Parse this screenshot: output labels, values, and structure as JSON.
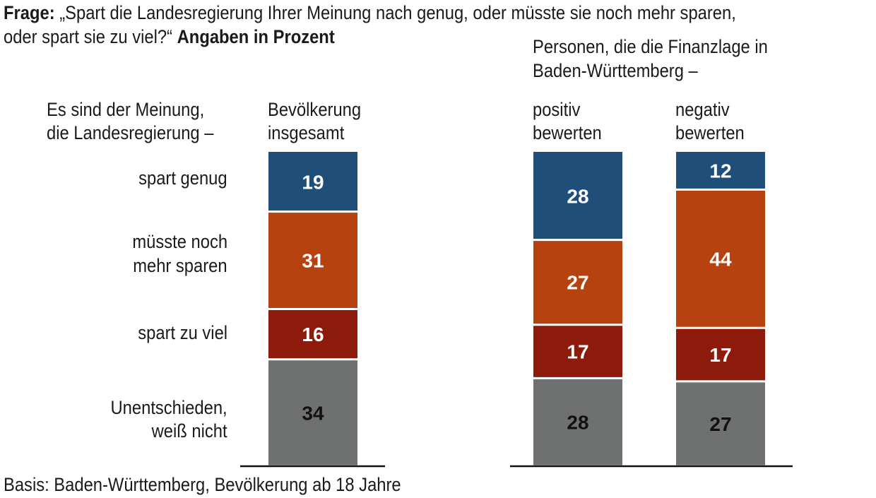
{
  "question": {
    "prefix": "Frage:",
    "line1": "„Spart die Landesregierung Ihrer Meinung nach genug, oder müsste sie noch mehr sparen,",
    "line2": "oder spart sie zu viel?“",
    "suffix": "Angaben in Prozent"
  },
  "left_header": {
    "line1": "Es sind der Meinung,",
    "line2": "die Landesregierung –"
  },
  "group_header": {
    "line1": "Personen, die die Finanzlage in",
    "line2": "Baden-Württemberg –"
  },
  "footnote": "Basis: Baden-Württemberg, Bevölkerung ab 18 Jahre",
  "colors": {
    "spart_genug": "#1f4e79",
    "mehr_sparen": "#b5420f",
    "zu_viel": "#8e1a0b",
    "unentschieden": "#6f7070"
  },
  "chart_data": {
    "type": "bar",
    "stacked": true,
    "unit": "%",
    "categories": [
      "spart genug",
      "müsste noch mehr sparen",
      "spart zu viel",
      "Unentschieden, weiß nicht"
    ],
    "category_labels": [
      [
        "spart genug"
      ],
      [
        "müsste noch",
        "mehr sparen"
      ],
      [
        "spart zu viel"
      ],
      [
        "Unentschieden,",
        "weiß nicht"
      ]
    ],
    "columns": [
      {
        "name": "Bevölkerung insgesamt",
        "label_lines": [
          "Bevölkerung",
          "insgesamt"
        ],
        "values": [
          19,
          31,
          16,
          34
        ]
      },
      {
        "name": "positiv bewerten",
        "label_lines": [
          "positiv",
          "bewerten"
        ],
        "values": [
          28,
          27,
          17,
          28
        ]
      },
      {
        "name": "negativ bewerten",
        "label_lines": [
          "negativ",
          "bewerten"
        ],
        "values": [
          12,
          44,
          17,
          27
        ]
      }
    ]
  }
}
